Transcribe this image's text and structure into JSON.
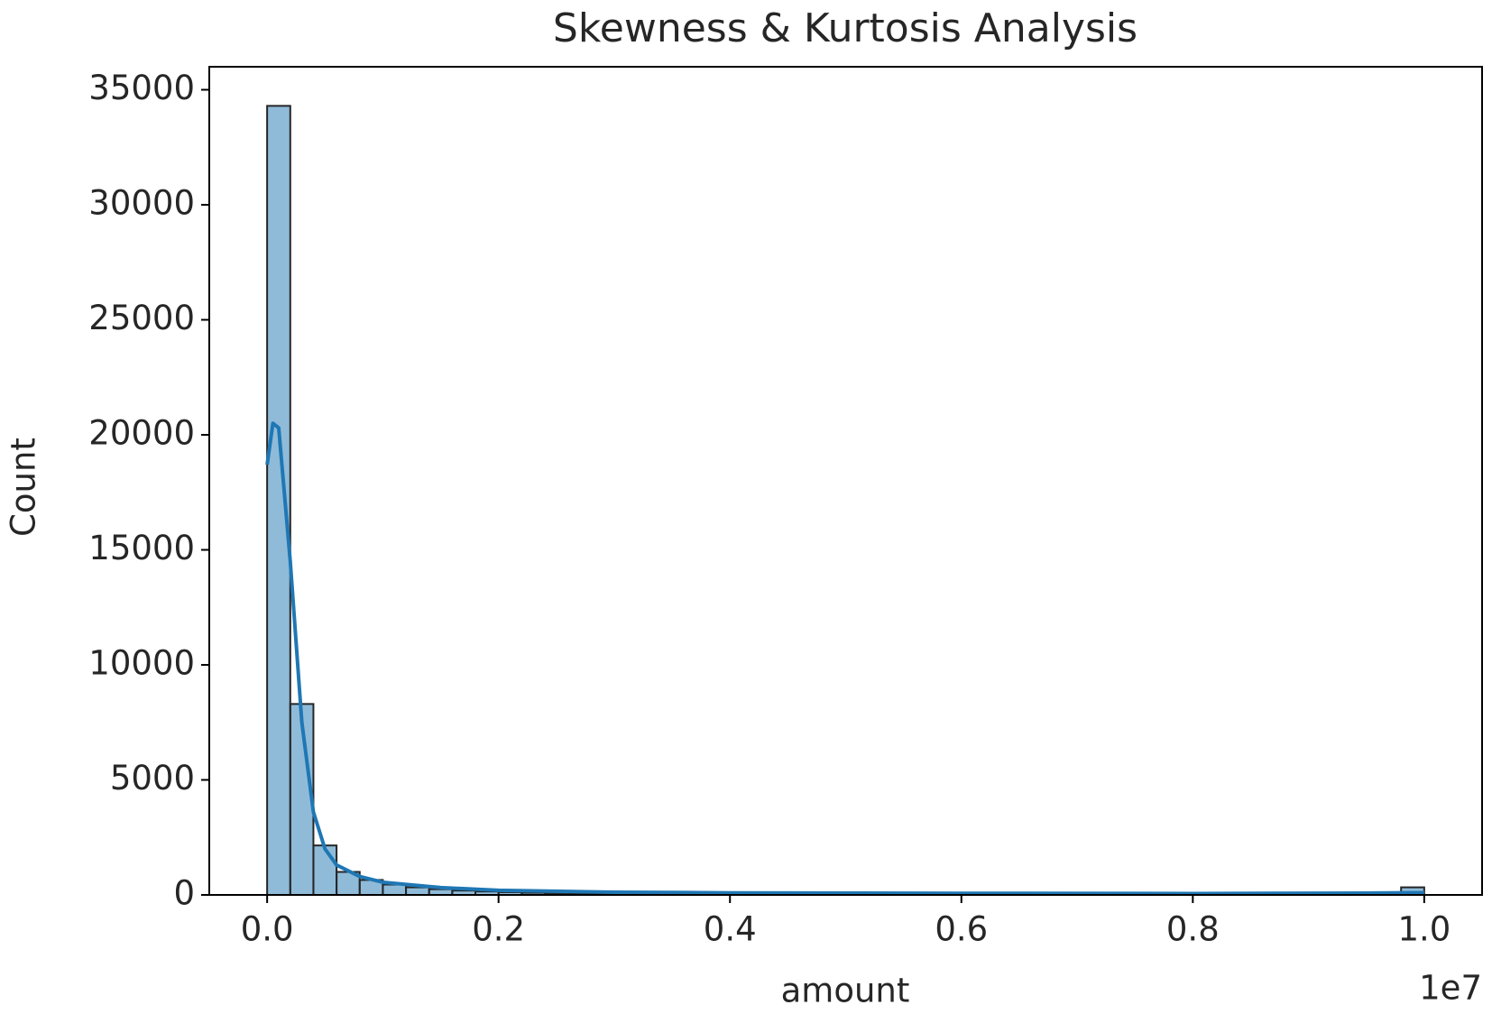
{
  "chart_data": {
    "type": "histogram",
    "title": "Skewness & Kurtosis Analysis",
    "x_label": "amount",
    "y_label": "Count",
    "x_offset_label": "1e7",
    "bins": [
      0,
      200000,
      400000,
      600000,
      800000,
      1000000,
      1200000,
      1400000,
      1600000,
      1800000,
      2000000,
      2200000,
      2400000,
      2600000,
      2800000,
      3000000,
      3200000,
      3400000,
      3600000,
      3800000,
      4000000,
      4200000,
      4400000,
      4600000,
      4800000,
      5000000,
      5200000,
      5400000,
      5600000,
      5800000,
      6000000,
      6200000,
      6400000,
      6600000,
      6800000,
      7000000,
      7200000,
      7400000,
      7600000,
      7800000,
      8000000,
      8200000,
      8400000,
      8600000,
      8800000,
      9000000,
      9200000,
      9400000,
      9600000,
      9800000,
      10000000
    ],
    "counts": [
      34300,
      8300,
      2150,
      1000,
      650,
      450,
      330,
      250,
      190,
      150,
      120,
      95,
      80,
      65,
      55,
      48,
      42,
      37,
      33,
      30,
      27,
      25,
      22,
      20,
      19,
      18,
      16,
      15,
      14,
      13,
      12,
      11,
      11,
      10,
      10,
      9,
      9,
      8,
      8,
      8,
      7,
      7,
      7,
      6,
      6,
      6,
      6,
      5,
      5,
      330
    ],
    "color": "#1f77b4",
    "bar_opacity": 0.5,
    "edgecolor": "#262626",
    "kde": {
      "color": "#1f77b4",
      "x": [
        0,
        50000,
        100000,
        200000,
        300000,
        400000,
        500000,
        600000,
        800000,
        1000000,
        1500000,
        2000000,
        3000000,
        4000000,
        6000000,
        8000000,
        9500000,
        10000000
      ],
      "values": [
        18700,
        20500,
        20300,
        14500,
        7500,
        3600,
        2000,
        1300,
        800,
        550,
        320,
        200,
        120,
        90,
        70,
        60,
        80,
        100
      ]
    },
    "xlim": [
      -500000,
      10500000
    ],
    "ylim": [
      0,
      36000
    ],
    "xticks": [
      {
        "value": 0,
        "label": "0.0"
      },
      {
        "value": 2000000,
        "label": "0.2"
      },
      {
        "value": 4000000,
        "label": "0.4"
      },
      {
        "value": 6000000,
        "label": "0.6"
      },
      {
        "value": 8000000,
        "label": "0.8"
      },
      {
        "value": 10000000,
        "label": "1.0"
      }
    ],
    "yticks": [
      0,
      5000,
      10000,
      15000,
      20000,
      25000,
      30000,
      35000
    ],
    "grid": false
  }
}
